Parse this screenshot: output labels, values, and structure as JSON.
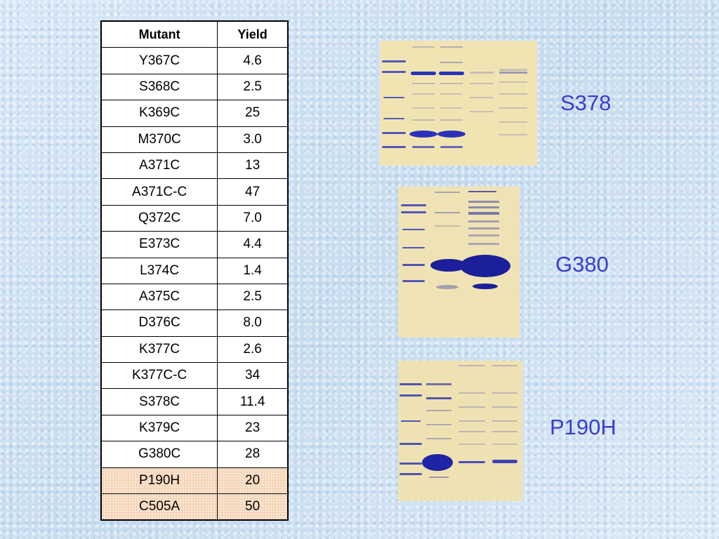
{
  "table": {
    "headers": [
      "Mutant",
      "Yield"
    ],
    "rows": [
      {
        "mutant": "Y367C",
        "yield": "4.6"
      },
      {
        "mutant": "S368C",
        "yield": "2.5"
      },
      {
        "mutant": "K369C",
        "yield": "25"
      },
      {
        "mutant": "M370C",
        "yield": "3.0"
      },
      {
        "mutant": "A371C",
        "yield": "13"
      },
      {
        "mutant": "A371C-C",
        "yield": "47"
      },
      {
        "mutant": "Q372C",
        "yield": "7.0"
      },
      {
        "mutant": "E373C",
        "yield": "4.4"
      },
      {
        "mutant": "L374C",
        "yield": "1.4"
      },
      {
        "mutant": "A375C",
        "yield": "2.5"
      },
      {
        "mutant": "D376C",
        "yield": "8.0"
      },
      {
        "mutant": "K377C",
        "yield": "2.6"
      },
      {
        "mutant": "K377C-C",
        "yield": "34"
      },
      {
        "mutant": "S378C",
        "yield": "11.4"
      },
      {
        "mutant": "K379C",
        "yield": "23"
      },
      {
        "mutant": "G380C",
        "yield": "28"
      },
      {
        "mutant": "P190H",
        "yield": "20",
        "highlight": true
      },
      {
        "mutant": "C505A",
        "yield": "50",
        "highlight": true
      }
    ]
  },
  "gels": [
    {
      "label": "S378",
      "background": "#f1e4b3",
      "band_color": "#2b32b8"
    },
    {
      "label": "G380",
      "background": "#efe3b5",
      "band_color": "#1b1f9a"
    },
    {
      "label": "P190H",
      "background": "#efe2b2",
      "band_color": "#2a30b5"
    }
  ],
  "colors": {
    "label_text": "#3b3bd0",
    "highlight_row": "#fbe3cc",
    "slide_background": "#cfe2f3"
  }
}
